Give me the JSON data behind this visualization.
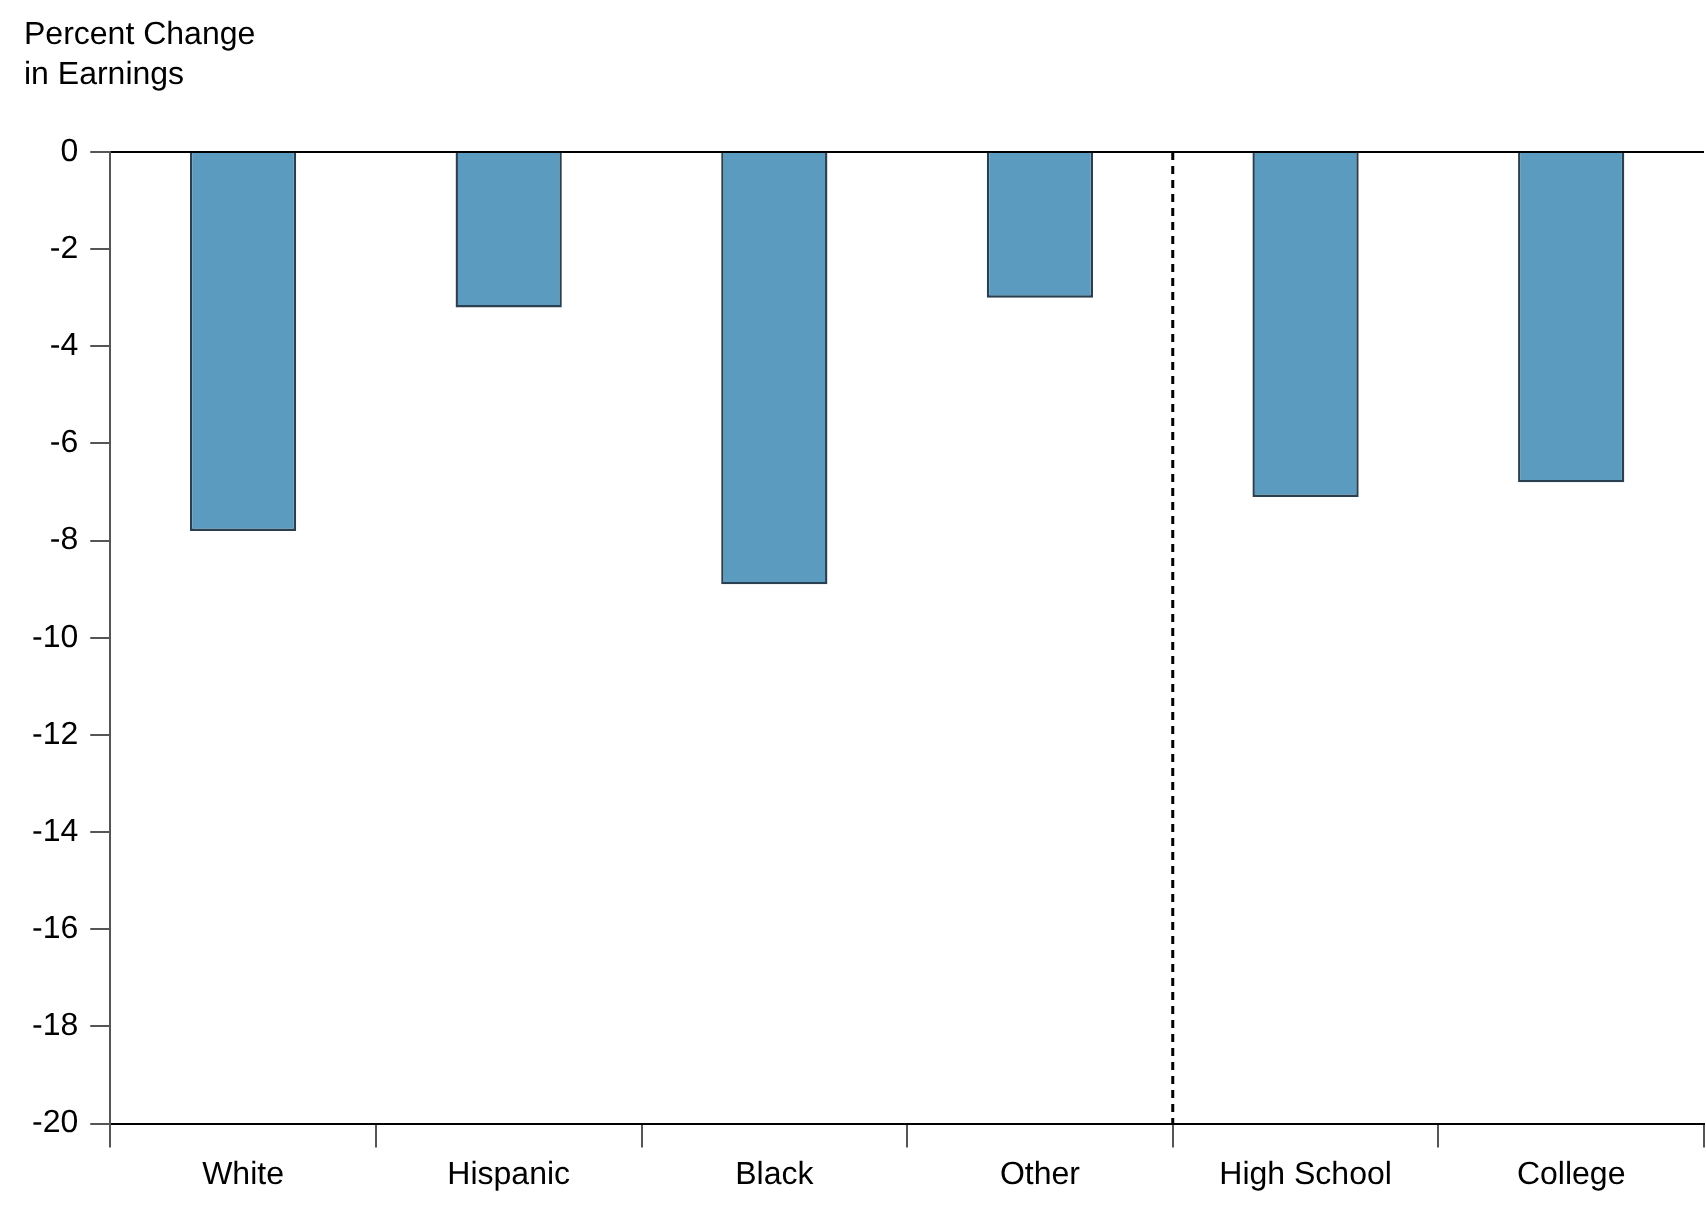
{
  "chart_data": {
    "type": "bar",
    "ylabel": "Percent Change\nin Earnings",
    "categories": [
      "White",
      "Hispanic",
      "Black",
      "Other",
      "High School",
      "College"
    ],
    "values": [
      -7.8,
      -3.2,
      -8.9,
      -3.0,
      -7.1,
      -6.8
    ],
    "color": "#5a9bbf",
    "ylim": [
      -20,
      0
    ],
    "yticks": [
      0,
      -2,
      -4,
      -6,
      -8,
      -10,
      -12,
      -14,
      -16,
      -18,
      -20
    ],
    "grid": false,
    "legend": false
  }
}
